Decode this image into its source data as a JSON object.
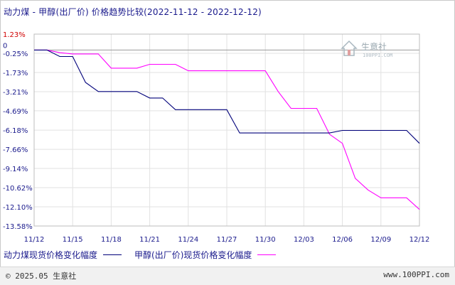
{
  "header": {
    "title": "动力煤 - 甲醇(出厂价) 价格趋势比较(2022-11-12 - 2022-12-12)"
  },
  "watermark": {
    "name": "生意社",
    "url": "100PPI.COM"
  },
  "legend": {
    "series_a_label": "动力煤现货价格变化幅度",
    "series_b_label": "甲醇(出厂价)现货价格变化幅度"
  },
  "footer": {
    "left": "© 2025.05 生意社",
    "right": "www.100PPI.com"
  },
  "colors": {
    "series_a": "#00007a",
    "series_b": "#ff00ff",
    "grid": "#e2e2e2",
    "axis_text": "#1a1a8c",
    "top_tick": "#d00000"
  },
  "chart_data": {
    "type": "line",
    "title": "动力煤 - 甲醇(出厂价) 价格趋势比较(2022-11-12 - 2022-12-12)",
    "xlabel": "",
    "ylabel": "",
    "y_ticks": [
      "1.23%",
      "-0.25%",
      "-1.73%",
      "-3.21%",
      "-4.69%",
      "-6.18%",
      "-7.66%",
      "-9.14%",
      "-10.62%",
      "-12.10%",
      "-13.58%"
    ],
    "y_tick_values": [
      1.23,
      -0.25,
      -1.73,
      -3.21,
      -4.69,
      -6.18,
      -7.66,
      -9.14,
      -10.62,
      -12.1,
      -13.58
    ],
    "zero_label": "0",
    "ylim": [
      -13.58,
      1.23
    ],
    "x_tick_labels": [
      "11/12",
      "11/15",
      "11/18",
      "11/21",
      "11/24",
      "11/27",
      "11/30",
      "12/03",
      "12/06",
      "12/09",
      "12/12"
    ],
    "x_tick_days": [
      0,
      3,
      6,
      9,
      12,
      15,
      18,
      21,
      24,
      27,
      30
    ],
    "xlim": [
      0,
      30
    ],
    "grid": true,
    "legend_position": "bottom",
    "series": [
      {
        "name": "动力煤现货价格变化幅度",
        "color": "#00007a",
        "points": [
          [
            0,
            0
          ],
          [
            1,
            0
          ],
          [
            2,
            -0.5
          ],
          [
            3,
            -0.5
          ],
          [
            4,
            -2.5
          ],
          [
            5,
            -3.2
          ],
          [
            6,
            -3.2
          ],
          [
            7,
            -3.2
          ],
          [
            8,
            -3.2
          ],
          [
            9,
            -3.7
          ],
          [
            10,
            -3.7
          ],
          [
            11,
            -4.6
          ],
          [
            12,
            -4.6
          ],
          [
            13,
            -4.6
          ],
          [
            14,
            -4.6
          ],
          [
            15,
            -4.6
          ],
          [
            16,
            -6.4
          ],
          [
            17,
            -6.4
          ],
          [
            18,
            -6.4
          ],
          [
            19,
            -6.4
          ],
          [
            20,
            -6.4
          ],
          [
            21,
            -6.4
          ],
          [
            22,
            -6.4
          ],
          [
            23,
            -6.4
          ],
          [
            24,
            -6.2
          ],
          [
            25,
            -6.2
          ],
          [
            26,
            -6.2
          ],
          [
            27,
            -6.2
          ],
          [
            28,
            -6.2
          ],
          [
            29,
            -6.2
          ],
          [
            30,
            -7.2
          ]
        ]
      },
      {
        "name": "甲醇(出厂价)现货价格变化幅度",
        "color": "#ff00ff",
        "points": [
          [
            0,
            0
          ],
          [
            1,
            0
          ],
          [
            2,
            -0.2
          ],
          [
            3,
            -0.3
          ],
          [
            4,
            -0.3
          ],
          [
            5,
            -0.3
          ],
          [
            6,
            -1.4
          ],
          [
            7,
            -1.4
          ],
          [
            8,
            -1.4
          ],
          [
            9,
            -1.1
          ],
          [
            10,
            -1.1
          ],
          [
            11,
            -1.1
          ],
          [
            12,
            -1.6
          ],
          [
            13,
            -1.6
          ],
          [
            14,
            -1.6
          ],
          [
            15,
            -1.6
          ],
          [
            16,
            -1.6
          ],
          [
            17,
            -1.6
          ],
          [
            18,
            -1.6
          ],
          [
            19,
            -3.2
          ],
          [
            20,
            -4.5
          ],
          [
            21,
            -4.5
          ],
          [
            22,
            -4.5
          ],
          [
            23,
            -6.5
          ],
          [
            24,
            -7.2
          ],
          [
            25,
            -9.9
          ],
          [
            26,
            -10.8
          ],
          [
            27,
            -11.4
          ],
          [
            28,
            -11.4
          ],
          [
            29,
            -11.4
          ],
          [
            30,
            -12.3
          ]
        ]
      }
    ]
  }
}
